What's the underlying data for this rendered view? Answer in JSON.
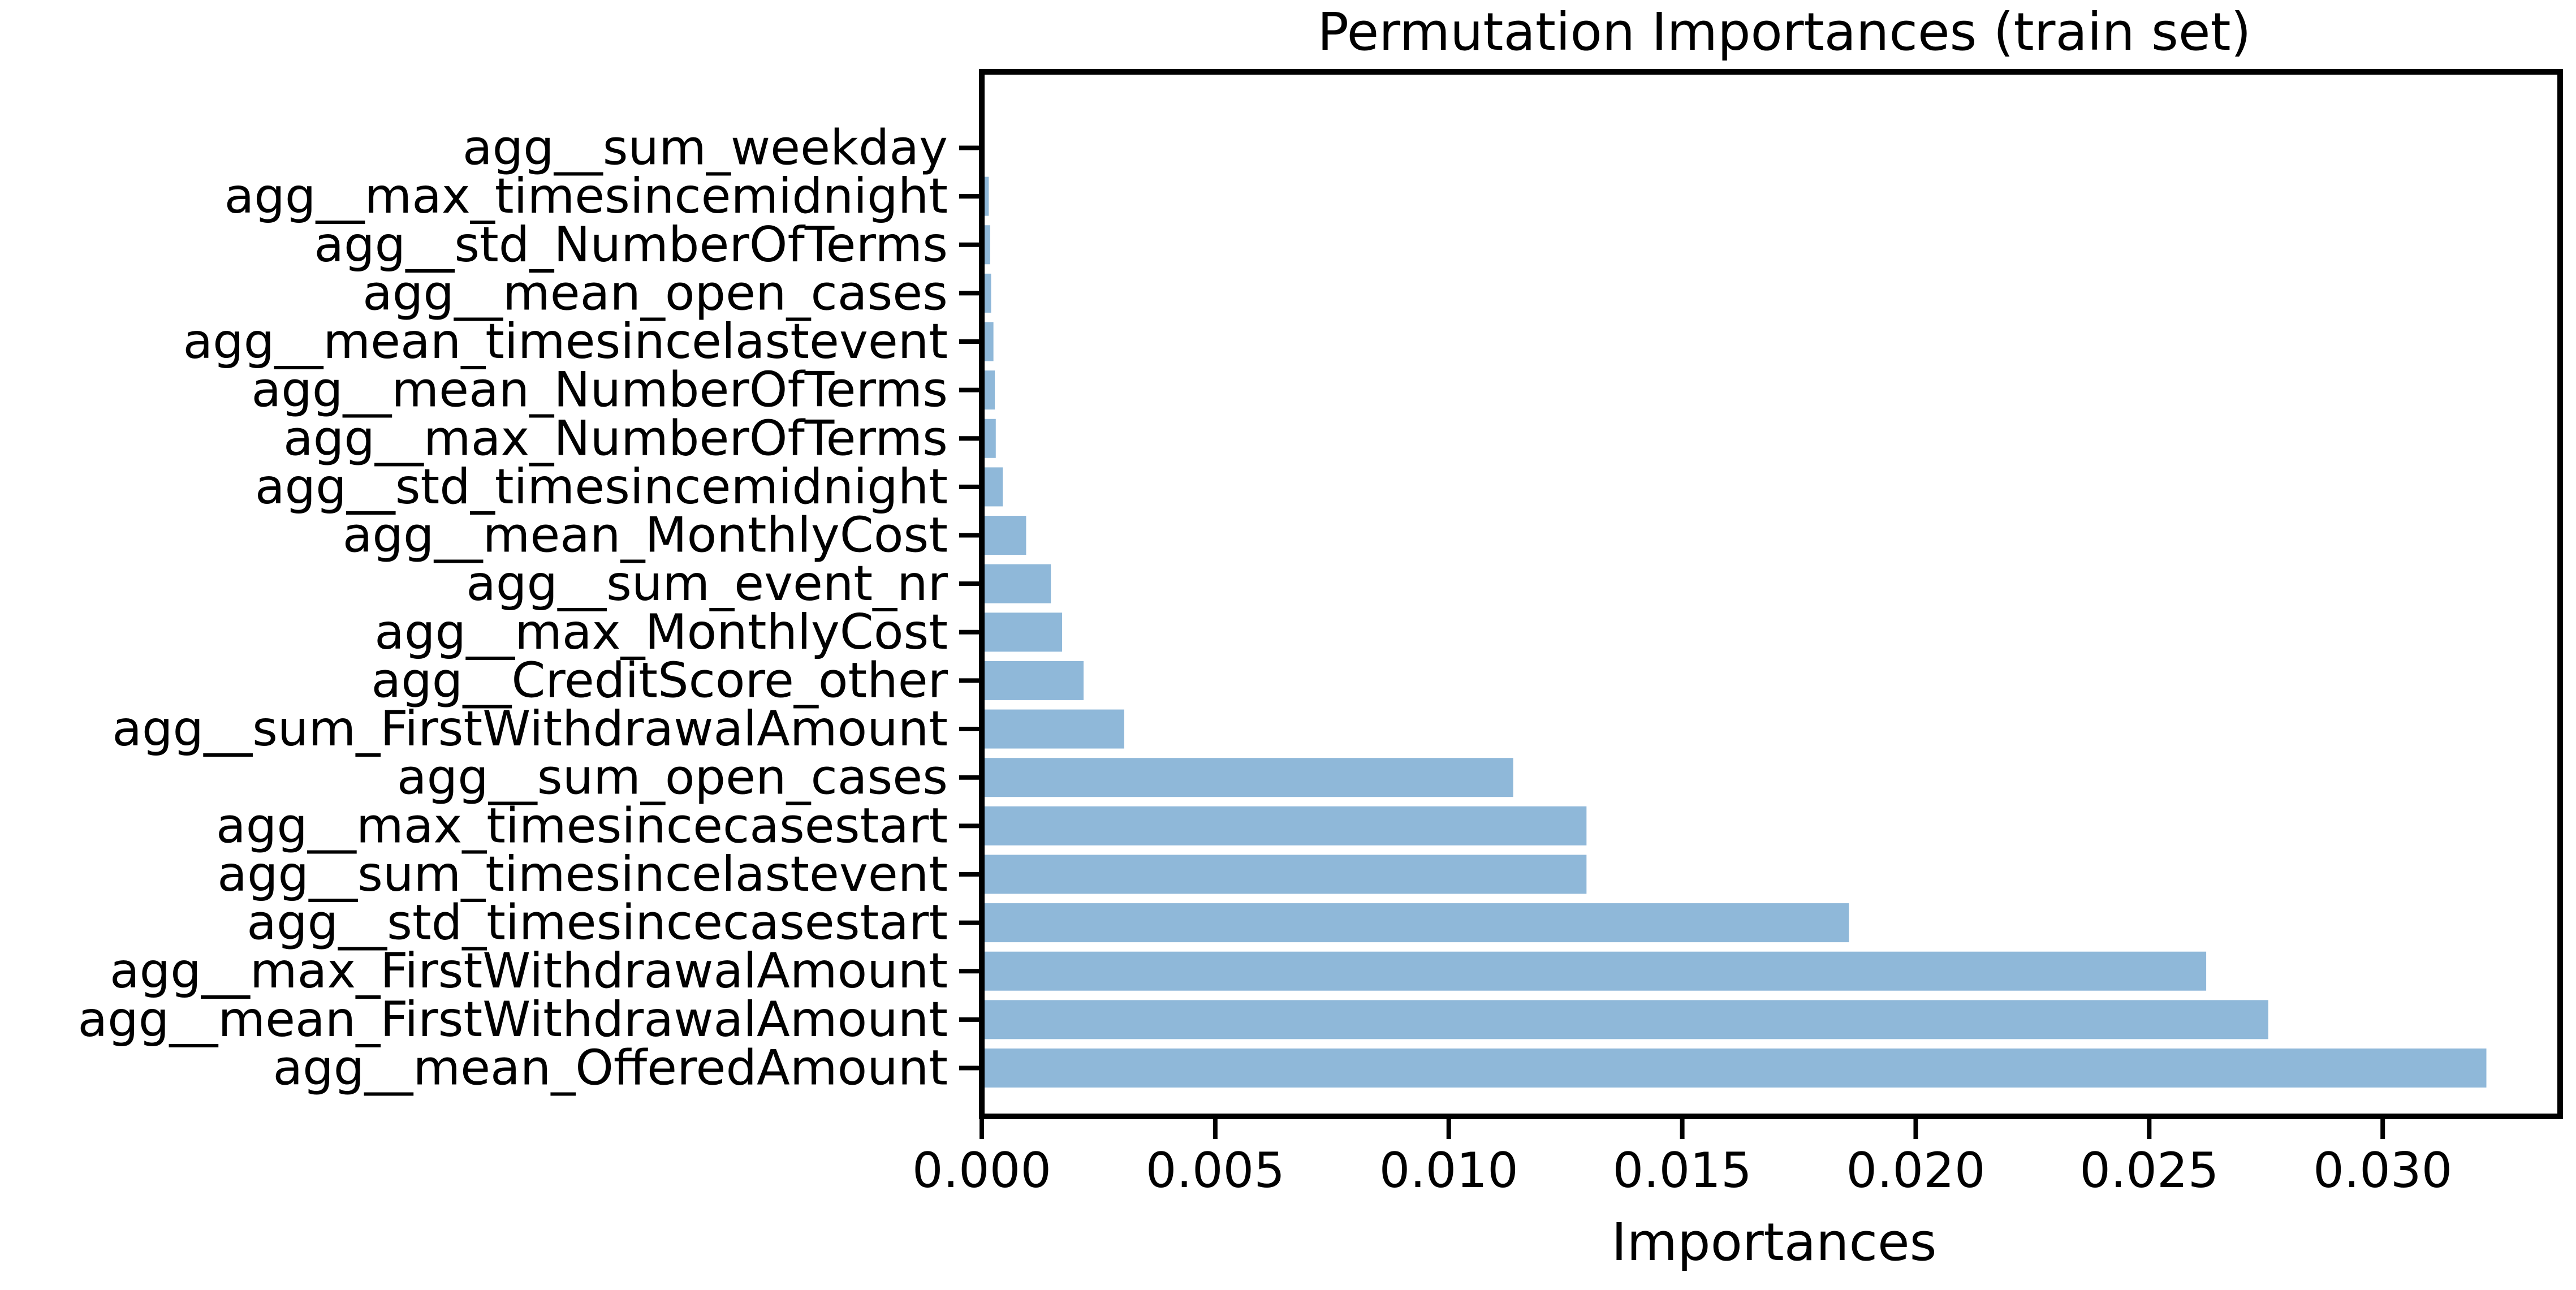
{
  "chart_data": {
    "type": "bar",
    "orientation": "horizontal",
    "title": "Permutation Importances (train set)",
    "xlabel": "Importances",
    "ylabel": "",
    "xlim": [
      0,
      0.0338
    ],
    "xticks": [
      0.0,
      0.005,
      0.01,
      0.015,
      0.02,
      0.025,
      0.03
    ],
    "xtick_labels": [
      "0.000",
      "0.005",
      "0.010",
      "0.015",
      "0.020",
      "0.025",
      "0.030"
    ],
    "grid": false,
    "legend": "none",
    "bar_color": "#8fb8d9",
    "categories": [
      "agg__sum_weekday",
      "agg__max_timesincemidnight",
      "agg__std_NumberOfTerms",
      "agg__mean_open_cases",
      "agg__mean_timesincelastevent",
      "agg__mean_NumberOfTerms",
      "agg__max_NumberOfTerms",
      "agg__std_timesincemidnight",
      "agg__mean_MonthlyCost",
      "agg__sum_event_nr",
      "agg__max_MonthlyCost",
      "agg__CreditScore_other",
      "agg__sum_FirstWithdrawalAmount",
      "agg__sum_open_cases",
      "agg__max_timesincecasestart",
      "agg__sum_timesincelastevent",
      "agg__std_timesincecasestart",
      "agg__max_FirstWithdrawalAmount",
      "agg__mean_FirstWithdrawalAmount",
      "agg__mean_OfferedAmount"
    ],
    "values": [
      0.0,
      0.00015,
      0.00018,
      0.0002,
      0.00025,
      0.00028,
      0.0003,
      0.00045,
      0.00095,
      0.00148,
      0.00172,
      0.00218,
      0.00305,
      0.01138,
      0.01295,
      0.01295,
      0.01857,
      0.02622,
      0.02755,
      0.03222
    ]
  }
}
